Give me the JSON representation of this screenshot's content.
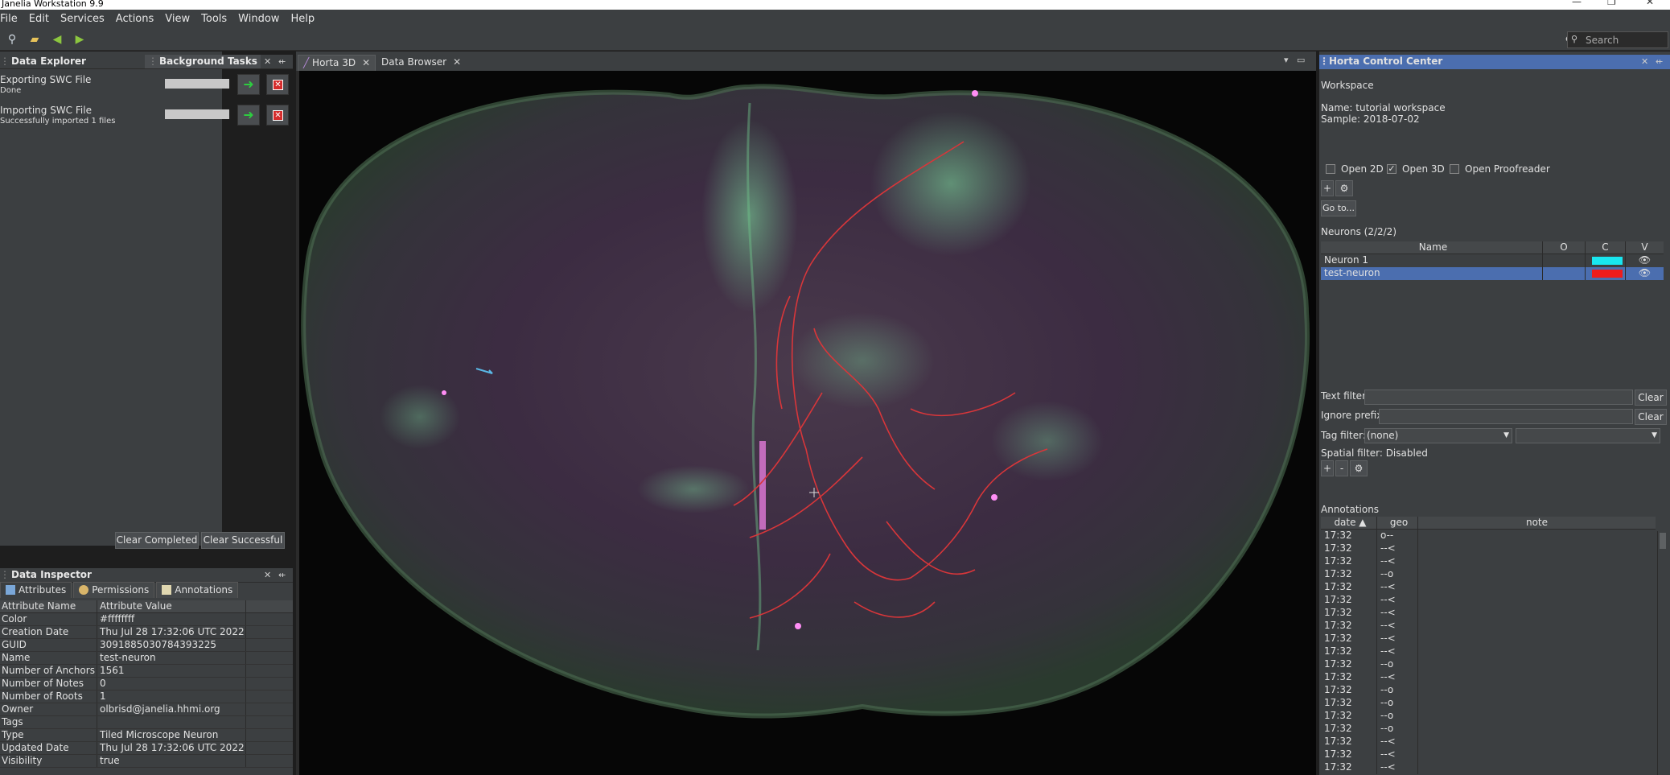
{
  "window": {
    "title": "Janelia Workstation 9.9"
  },
  "menu": [
    "File",
    "Edit",
    "Services",
    "Actions",
    "View",
    "Tools",
    "Window",
    "Help"
  ],
  "toolbar": {
    "search_placeholder": "Search"
  },
  "data_explorer": {
    "title": "Data Explorer"
  },
  "background_tasks": {
    "title": "Background Tasks",
    "tasks": [
      {
        "name": "Exporting SWC File",
        "status": "Done"
      },
      {
        "name": "Importing SWC File",
        "status": "Successfully imported 1 files"
      }
    ],
    "clear_completed_label": "Clear Completed",
    "clear_successful_label": "Clear Successful"
  },
  "data_inspector": {
    "title": "Data Inspector",
    "tabs": [
      "Attributes",
      "Permissions",
      "Annotations"
    ],
    "columns": [
      "Attribute Name",
      "Attribute Value"
    ],
    "rows": [
      {
        "name": "Color",
        "value": "#ffffffff"
      },
      {
        "name": "Creation Date",
        "value": "Thu Jul 28 17:32:06 UTC 2022"
      },
      {
        "name": "GUID",
        "value": "3091885030784393225"
      },
      {
        "name": "Name",
        "value": "test-neuron"
      },
      {
        "name": "Number of Anchors",
        "value": "1561"
      },
      {
        "name": "Number of Notes",
        "value": "0"
      },
      {
        "name": "Number of Roots",
        "value": "1"
      },
      {
        "name": "Owner",
        "value": "olbrisd@janelia.hhmi.org"
      },
      {
        "name": "Tags",
        "value": ""
      },
      {
        "name": "Type",
        "value": "Tiled Microscope Neuron"
      },
      {
        "name": "Updated Date",
        "value": "Thu Jul 28 17:32:06 UTC 2022"
      },
      {
        "name": "Visibility",
        "value": "true"
      }
    ]
  },
  "viewer_tabs": [
    "Horta 3D",
    "Data Browser"
  ],
  "horta": {
    "title": "Horta Control Center",
    "workspace_heading": "Workspace",
    "name_line": "Name: tutorial workspace",
    "sample_line": "Sample: 2018-07-02",
    "checks": [
      {
        "label": "Open 2D",
        "checked": false
      },
      {
        "label": "Open 3D",
        "checked": true
      },
      {
        "label": "Open Proofreader",
        "checked": false
      }
    ],
    "plus_label": "+",
    "minus_label": "-",
    "goto_label": "Go to...",
    "neurons_heading": "Neurons (2/2/2)",
    "neuron_columns": [
      "Name",
      "O",
      "C",
      "V"
    ],
    "neurons": [
      {
        "name": "Neuron 1",
        "color": "#19e6f0"
      },
      {
        "name": "test-neuron",
        "color": "#ee1c1c"
      }
    ],
    "text_filter_label": "Text filter:",
    "ignore_prefix_label": "Ignore prefix:",
    "clear_label": "Clear",
    "tag_filter_label": "Tag filter:",
    "tag_filter_value": "(none)",
    "spatial_filter": "Spatial filter: Disabled",
    "annotations_heading": "Annotations",
    "annotation_columns": [
      "date ▲",
      "geo",
      "note"
    ],
    "annotations": [
      {
        "date": "17:32",
        "geo": "o--"
      },
      {
        "date": "17:32",
        "geo": "--<"
      },
      {
        "date": "17:32",
        "geo": "--<"
      },
      {
        "date": "17:32",
        "geo": "--o"
      },
      {
        "date": "17:32",
        "geo": "--<"
      },
      {
        "date": "17:32",
        "geo": "--<"
      },
      {
        "date": "17:32",
        "geo": "--<"
      },
      {
        "date": "17:32",
        "geo": "--<"
      },
      {
        "date": "17:32",
        "geo": "--<"
      },
      {
        "date": "17:32",
        "geo": "--<"
      },
      {
        "date": "17:32",
        "geo": "--o"
      },
      {
        "date": "17:32",
        "geo": "--<"
      },
      {
        "date": "17:32",
        "geo": "--o"
      },
      {
        "date": "17:32",
        "geo": "--o"
      },
      {
        "date": "17:32",
        "geo": "--o"
      },
      {
        "date": "17:32",
        "geo": "--o"
      },
      {
        "date": "17:32",
        "geo": "--<"
      },
      {
        "date": "17:32",
        "geo": "--<"
      },
      {
        "date": "17:32",
        "geo": "--<"
      }
    ]
  }
}
